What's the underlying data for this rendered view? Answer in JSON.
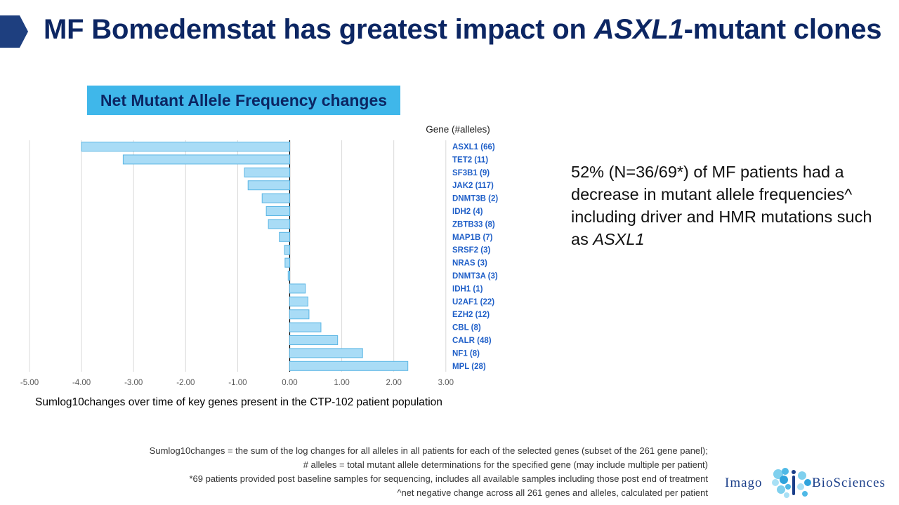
{
  "title": {
    "pre": "MF Bomedemstat has greatest impact on ",
    "gene": "ASXL1",
    "post": "-mutant clones"
  },
  "chart_header": "Net Mutant Allele Frequency changes",
  "chart_data": {
    "type": "bar",
    "orientation": "horizontal",
    "title": "Net Mutant Allele Frequency changes",
    "legend_title": "Gene (#alleles)",
    "xlabel": "Sumlog10changes over time of key genes present in the CTP-102 patient population",
    "xlim": [
      -5,
      3
    ],
    "xticks": [
      -5,
      -4,
      -3,
      -2,
      -1,
      0,
      1,
      2,
      3
    ],
    "xtick_labels": [
      "-5.00",
      "-4.00",
      "-3.00",
      "-2.00",
      "-1.00",
      "0.00",
      "1.00",
      "2.00",
      "3.00"
    ],
    "grid": true,
    "categories": [
      "ASXL1 (66)",
      "TET2 (11)",
      "SF3B1 (9)",
      "JAK2 (117)",
      "DNMT3B (2)",
      "IDH2 (4)",
      "ZBTB33 (8)",
      "MAP1B (7)",
      "SRSF2 (3)",
      "NRAS (3)",
      "DNMT3A (3)",
      "IDH1 (1)",
      "U2AF1 (22)",
      "EZH2 (12)",
      "CBL (8)",
      "CALR (48)",
      "NF1 (8)",
      "MPL (28)"
    ],
    "values": [
      -4.0,
      -3.2,
      -0.87,
      -0.8,
      -0.53,
      -0.45,
      -0.41,
      -0.2,
      -0.1,
      -0.09,
      -0.03,
      0.3,
      0.35,
      0.37,
      0.6,
      0.92,
      1.4,
      2.27
    ]
  },
  "summary": {
    "text1": "52% (N=36/69*) of MF patients had a decrease in mutant allele frequencies^ including driver and HMR mutations such as ",
    "gene": "ASXL1"
  },
  "footnotes": [
    "Sumlog10changes = the sum of the log changes for all alleles in all patients for each of the selected genes (subset of the 261 gene panel);",
    "# alleles = total mutant allele determinations for the specified gene (may include multiple per patient)",
    "*69 patients provided post baseline samples for sequencing, includes all available samples including those post end of treatment",
    "^net negative change across all 261 genes and alleles, calculated per patient"
  ],
  "logo": {
    "left": "Imago",
    "right": "BioSciences"
  },
  "colors": {
    "title": "#0c2663",
    "header_bg": "#3fb7ea",
    "bar_fill": "#a9dcf6",
    "bar_stroke": "#5bb6e4",
    "label": "#1f5fc8"
  }
}
